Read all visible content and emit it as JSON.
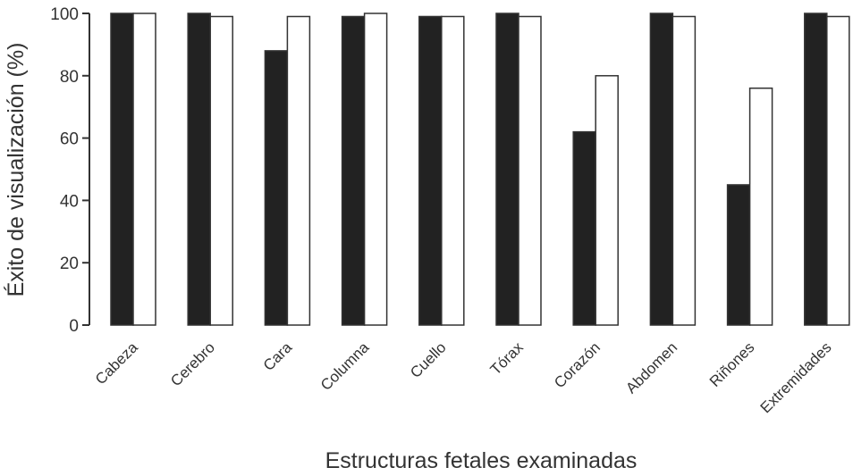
{
  "chart_data": {
    "type": "bar",
    "title": "",
    "xlabel": "Estructuras fetales examinadas",
    "ylabel": "Éxito de visualización (%)",
    "ylim": [
      0,
      100
    ],
    "yticks": [
      0,
      20,
      40,
      60,
      80,
      100
    ],
    "grid": false,
    "legend": "none",
    "categories": [
      "Cabeza",
      "Cerebro",
      "Cara",
      "Columna",
      "Cuello",
      "Tórax",
      "Corazón",
      "Abdomen",
      "Riñones",
      "Extremidades"
    ],
    "series": [
      {
        "color": "#222222",
        "values": [
          100,
          100,
          88,
          99,
          99,
          100,
          62,
          100,
          45,
          100
        ]
      },
      {
        "color": "#ffffff",
        "values": [
          100,
          99,
          99,
          100,
          99,
          99,
          80,
          99,
          76,
          99
        ]
      }
    ]
  }
}
